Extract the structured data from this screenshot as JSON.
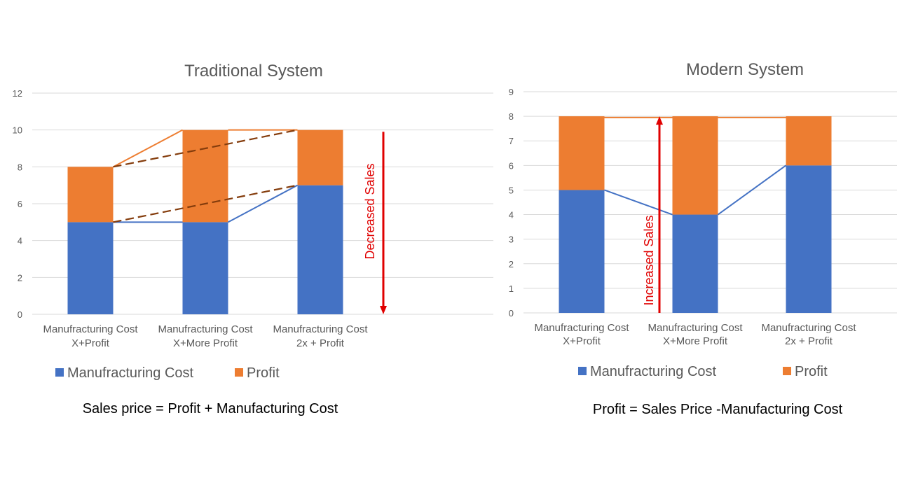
{
  "chart_data": [
    {
      "type": "bar",
      "stacked": true,
      "title": "Traditional System",
      "categories": [
        [
          "Manufracturing Cost",
          "X+Profit"
        ],
        [
          "Manufracturing Cost",
          "X+More Profit"
        ],
        [
          "Manufracturing Cost",
          "2x + Profit"
        ]
      ],
      "series": [
        {
          "name": "Manufracturing Cost",
          "values": [
            5,
            5,
            7
          ],
          "color": "#4472c4"
        },
        {
          "name": "Profit",
          "values": [
            3,
            5,
            3
          ],
          "color": "#ed7d31"
        }
      ],
      "ylim": [
        0,
        12
      ],
      "yticks": [
        0,
        2,
        4,
        6,
        8,
        10,
        12
      ],
      "grid": true,
      "legend": "bottom",
      "overlay_lines": [
        {
          "style": "solid",
          "color": "#ed7d31",
          "points": [
            [
              0,
              8
            ],
            [
              1,
              10
            ],
            [
              2,
              10
            ]
          ]
        },
        {
          "style": "solid",
          "color": "#4472c4",
          "points": [
            [
              0,
              5
            ],
            [
              1,
              5
            ],
            [
              2,
              7
            ]
          ]
        },
        {
          "style": "dashed",
          "color": "#843c0c",
          "points": [
            [
              0,
              8
            ],
            [
              2,
              10
            ]
          ]
        },
        {
          "style": "dashed",
          "color": "#843c0c",
          "points": [
            [
              0,
              5
            ],
            [
              2,
              7
            ]
          ]
        }
      ],
      "annotation": {
        "text": "Decreased Sales",
        "arrow": "down",
        "from": 9.9,
        "to": 0,
        "color": "#e00000"
      },
      "formula": "Sales price = Profit + Manufacturing Cost"
    },
    {
      "type": "bar",
      "stacked": true,
      "title": "Modern System",
      "categories": [
        [
          "Manufracturing Cost",
          "X+Profit"
        ],
        [
          "Manufracturing Cost",
          "X+More Profit"
        ],
        [
          "Manufracturing Cost",
          "2x + Profit"
        ]
      ],
      "series": [
        {
          "name": "Manufracturing Cost",
          "values": [
            5,
            4,
            6
          ],
          "color": "#4472c4"
        },
        {
          "name": "Profit",
          "values": [
            3,
            4,
            2
          ],
          "color": "#ed7d31"
        }
      ],
      "ylim": [
        0,
        9
      ],
      "yticks": [
        0,
        1,
        2,
        3,
        4,
        5,
        6,
        7,
        8,
        9
      ],
      "grid": true,
      "legend": "bottom",
      "overlay_lines": [
        {
          "style": "solid",
          "color": "#ed7d31",
          "points": [
            [
              0,
              7.95
            ],
            [
              1,
              7.95
            ],
            [
              2,
              7.95
            ]
          ]
        },
        {
          "style": "solid",
          "color": "#4472c4",
          "points": [
            [
              0,
              5
            ],
            [
              1,
              4
            ],
            [
              2,
              6
            ]
          ]
        }
      ],
      "annotation": {
        "text": "Increased Sales",
        "arrow": "up",
        "from": 0,
        "to": 8,
        "color": "#e00000"
      },
      "formula": "Profit = Sales Price -Manufacturing Cost"
    }
  ]
}
